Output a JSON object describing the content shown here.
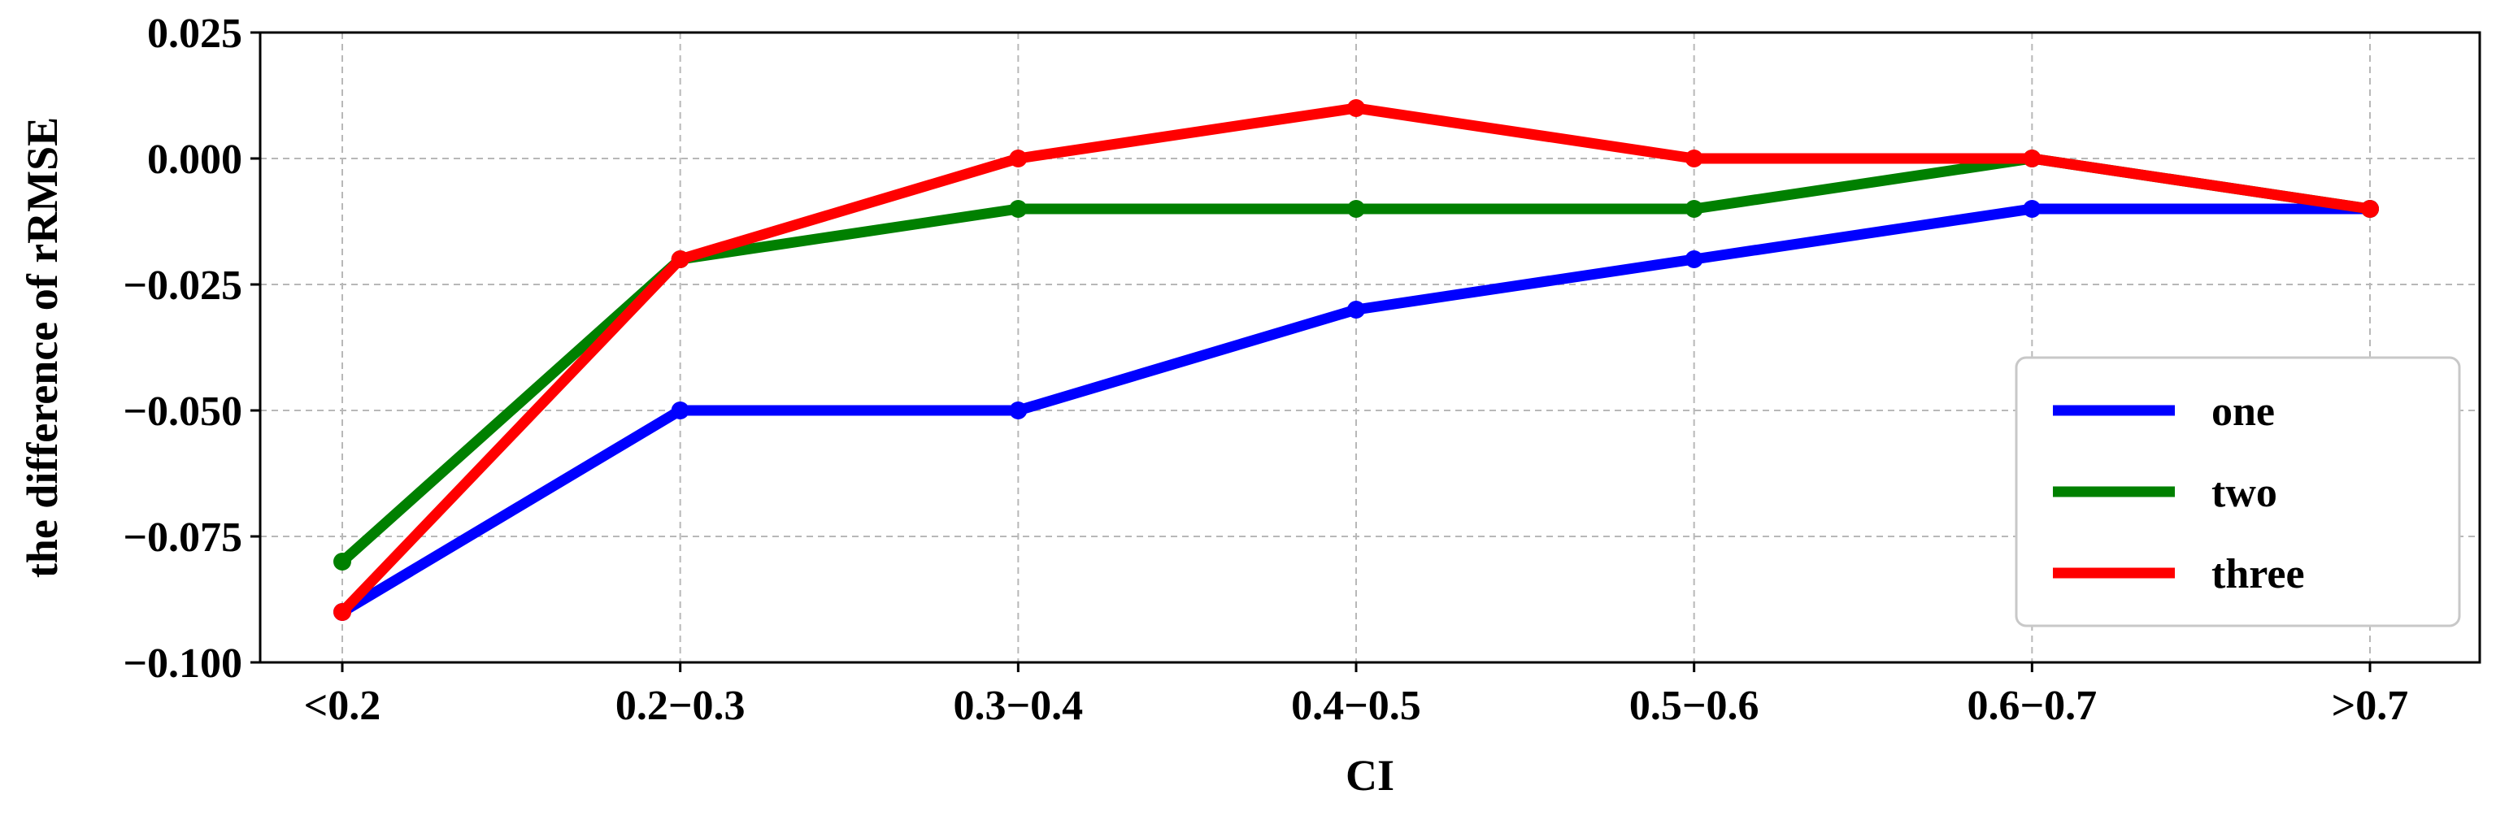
{
  "chart_data": {
    "type": "line",
    "title": "",
    "xlabel": "CI",
    "ylabel": "the difference of rRMSE",
    "categories": [
      "<0.2",
      "0.2−0.3",
      "0.3−0.4",
      "0.4−0.5",
      "0.5−0.6",
      "0.6−0.7",
      ">0.7"
    ],
    "yticks": [
      -0.1,
      -0.075,
      -0.05,
      -0.025,
      0.0,
      0.025
    ],
    "ytick_labels": [
      "−0.100",
      "−0.075",
      "−0.050",
      "−0.025",
      "0.000",
      "0.025"
    ],
    "ylim": [
      -0.1,
      0.025
    ],
    "grid": true,
    "legend_position": "lower-right",
    "series": [
      {
        "name": "one",
        "color": "#0000ff",
        "values": [
          -0.09,
          -0.05,
          -0.05,
          -0.03,
          -0.02,
          -0.01,
          -0.01
        ]
      },
      {
        "name": "two",
        "color": "#008000",
        "values": [
          -0.08,
          -0.02,
          -0.01,
          -0.01,
          -0.01,
          0.0,
          -0.01
        ]
      },
      {
        "name": "three",
        "color": "#ff0000",
        "values": [
          -0.09,
          -0.02,
          0.0,
          0.01,
          0.0,
          0.0,
          -0.01
        ]
      }
    ]
  }
}
